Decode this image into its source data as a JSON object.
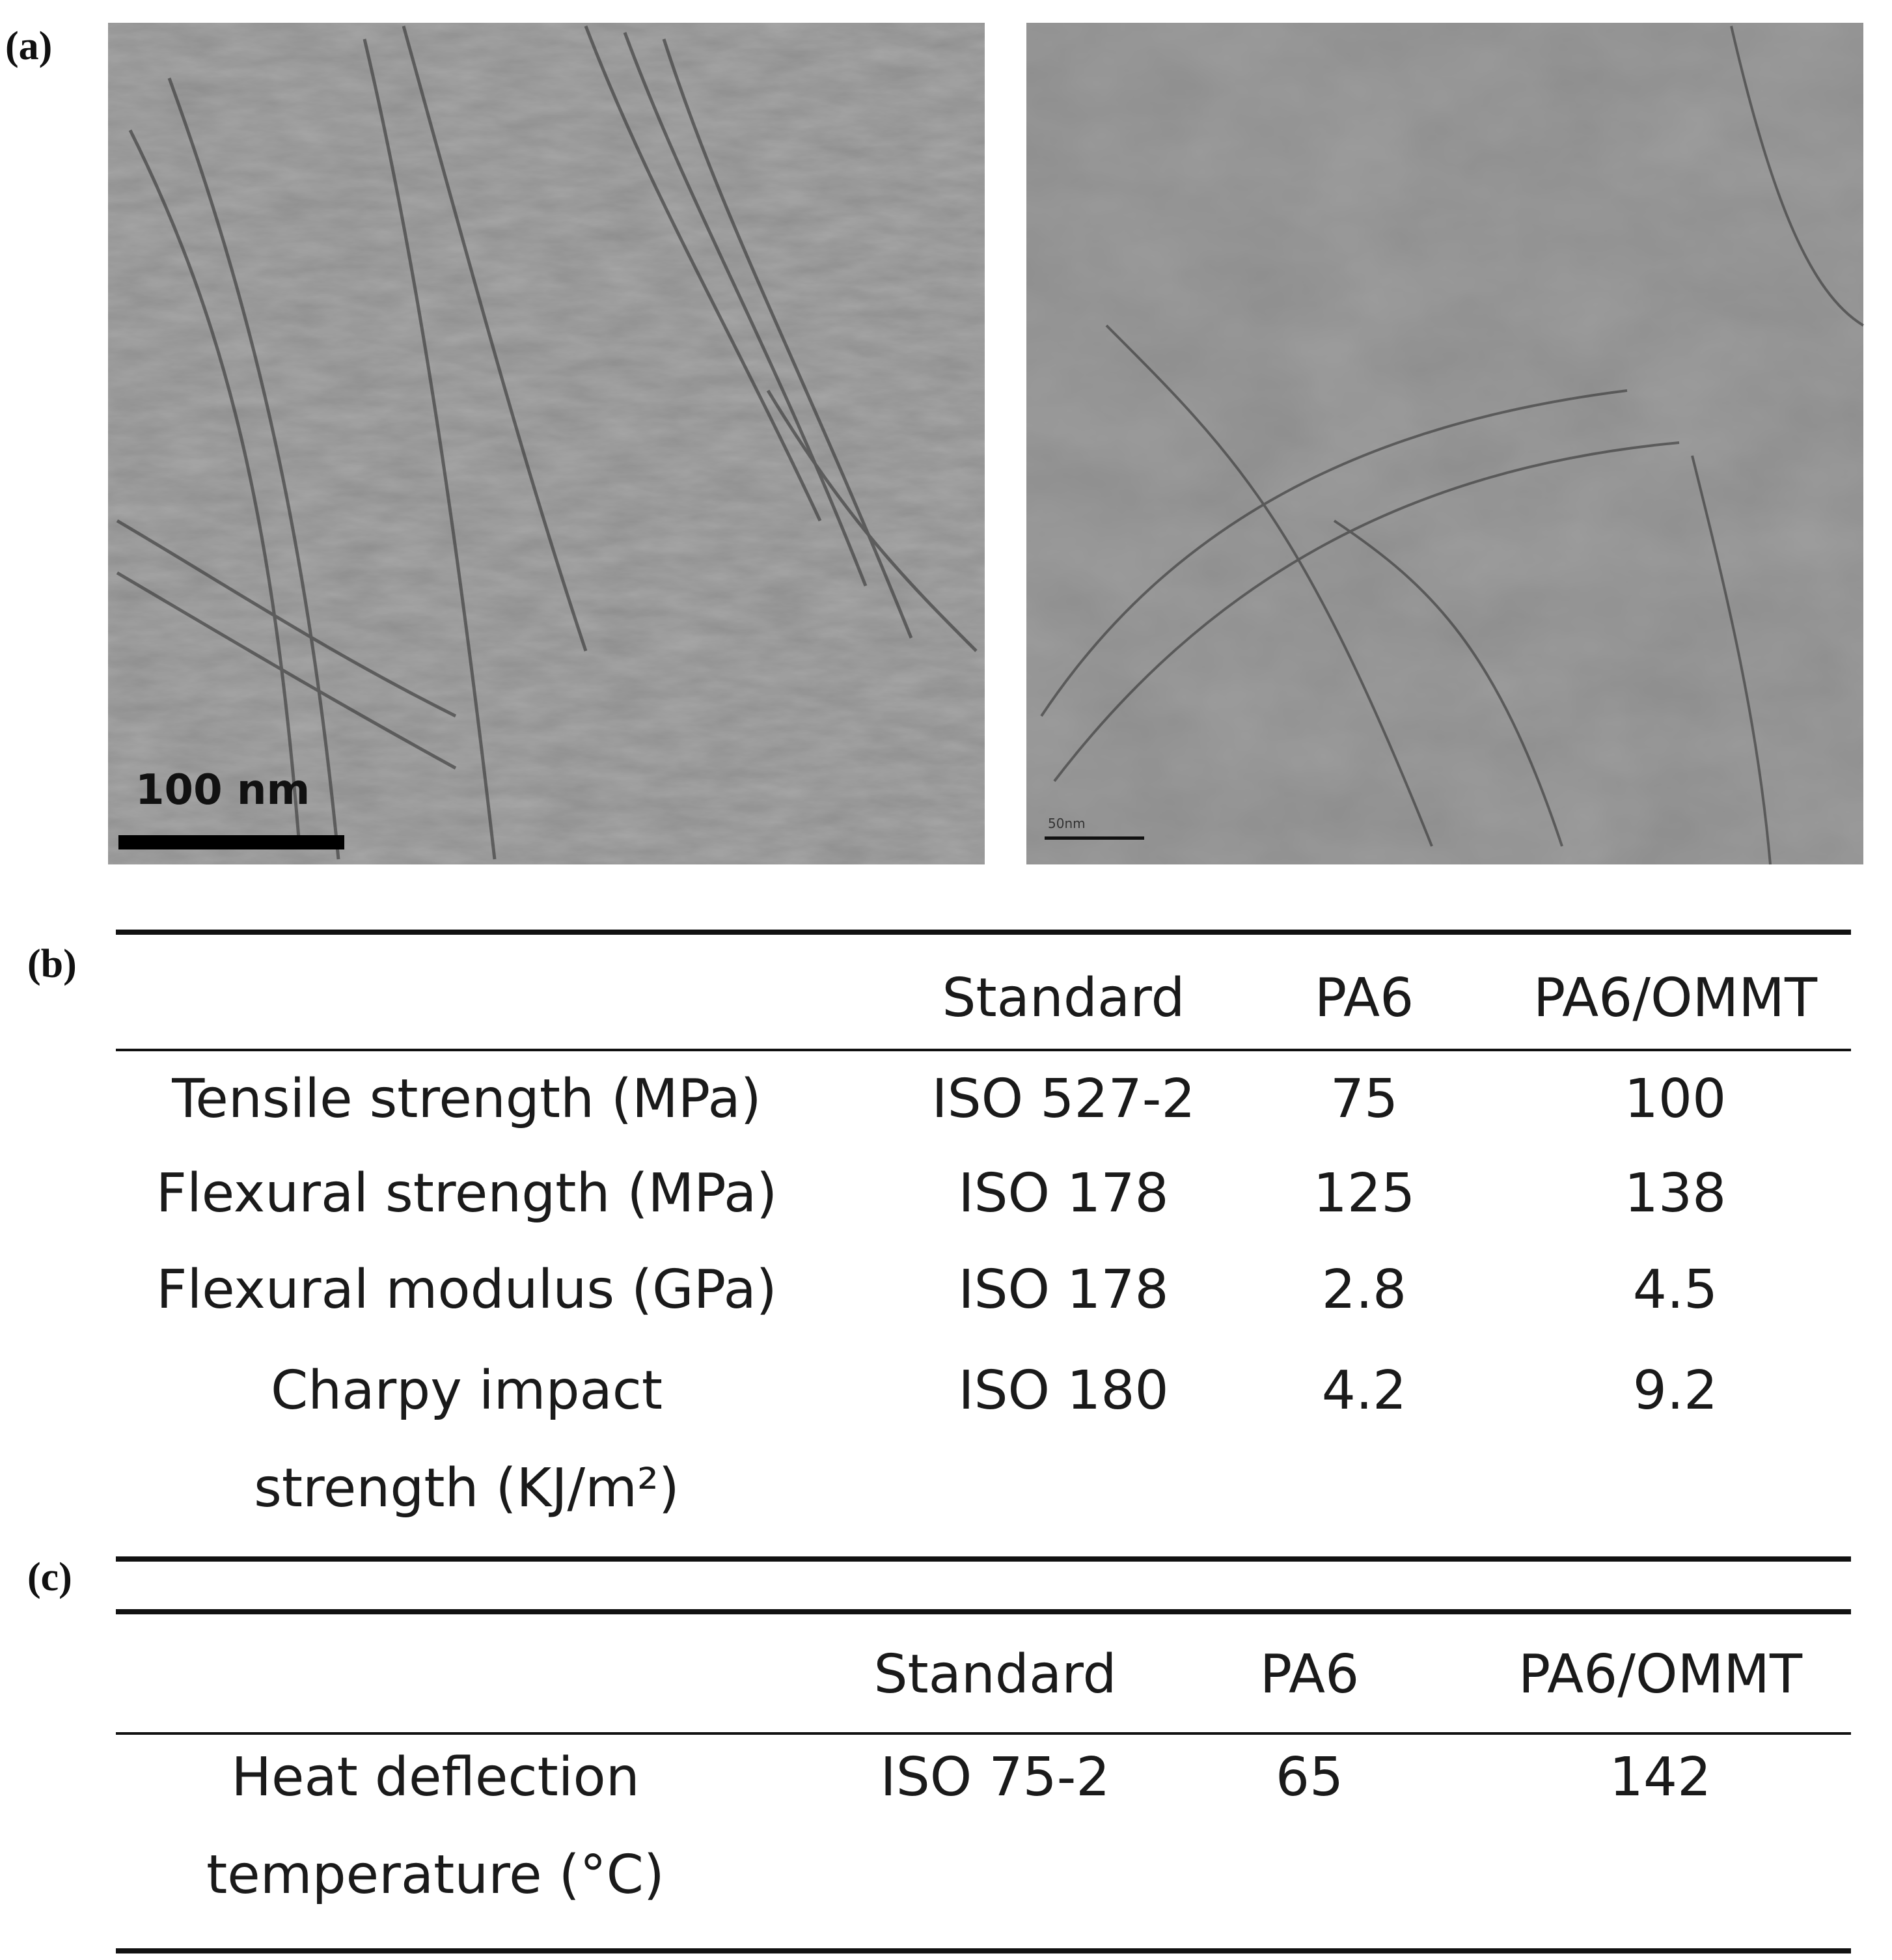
{
  "panel_a": {
    "label": "(a)",
    "images": [
      {
        "scale_bar": "100 nm"
      },
      {
        "scale_bar": "50nm"
      }
    ]
  },
  "panel_b": {
    "label": "(b)",
    "table": {
      "columns": [
        "Standard",
        "PA6",
        "PA6/OMMT"
      ],
      "rows": [
        [
          "Tensile strength (MPa)",
          "ISO 527-2",
          75,
          100
        ],
        [
          "Flexural strength (MPa)",
          "ISO 178",
          125,
          138
        ],
        [
          "Flexural modulus (GPa)",
          "ISO 178",
          2.8,
          4.5
        ],
        [
          "Charpy impact strength (KJ/m²)",
          "ISO 180",
          4.2,
          9.2
        ]
      ]
    }
  },
  "panel_c": {
    "label": "(c)",
    "table": {
      "columns": [
        "Standard",
        "PA6",
        "PA6/OMMT"
      ],
      "rows": [
        [
          "Heat deflection temperature (°C)",
          "ISO 75-2",
          65,
          142
        ]
      ]
    }
  }
}
